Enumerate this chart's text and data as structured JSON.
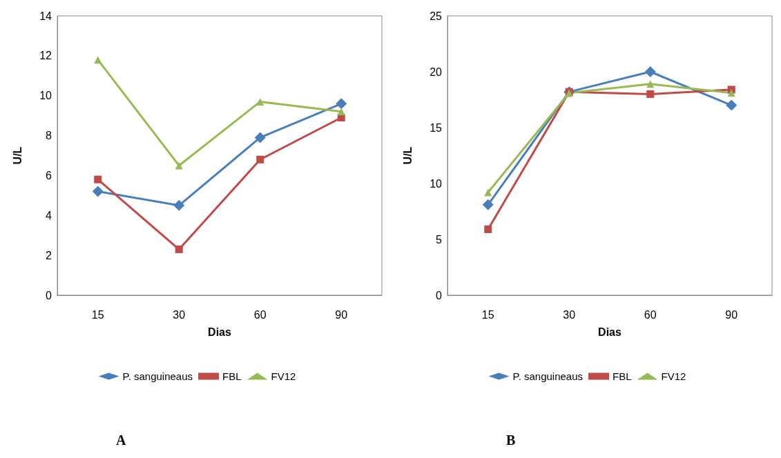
{
  "chart_data": [
    {
      "type": "line",
      "categories": [
        "15",
        "30",
        "60",
        "90"
      ],
      "xlabel": "Dias",
      "ylabel": "U/L",
      "ylim": [
        0,
        14
      ],
      "yticks": [
        0,
        2,
        4,
        6,
        8,
        10,
        12,
        14
      ],
      "grid": false,
      "legend": "bottom",
      "annotations": [
        "A"
      ],
      "series": [
        {
          "name": "P. sanguineaus",
          "color": "#4a7ebb",
          "marker": "diamond",
          "values": [
            5.2,
            4.5,
            7.9,
            9.6
          ]
        },
        {
          "name": "FBL",
          "color": "#be4b48",
          "marker": "square",
          "values": [
            5.8,
            2.3,
            6.8,
            8.9
          ]
        },
        {
          "name": "FV12",
          "color": "#98b954",
          "marker": "triangle",
          "values": [
            11.8,
            6.5,
            9.7,
            9.2
          ]
        }
      ]
    },
    {
      "type": "line",
      "categories": [
        "15",
        "30",
        "60",
        "90"
      ],
      "xlabel": "Dias",
      "ylabel": "U/L",
      "ylim": [
        0,
        25
      ],
      "yticks": [
        0,
        5,
        10,
        15,
        20,
        25
      ],
      "grid": false,
      "legend": "bottom",
      "annotations": [
        "B"
      ],
      "series": [
        {
          "name": "P. sanguineaus",
          "color": "#4a7ebb",
          "marker": "diamond",
          "values": [
            8.1,
            18.2,
            20.0,
            17.0
          ]
        },
        {
          "name": "FBL",
          "color": "#be4b48",
          "marker": "square",
          "values": [
            5.9,
            18.2,
            18.0,
            18.4
          ]
        },
        {
          "name": "FV12",
          "color": "#98b954",
          "marker": "triangle",
          "values": [
            9.2,
            18.1,
            18.9,
            18.1
          ]
        }
      ]
    }
  ]
}
